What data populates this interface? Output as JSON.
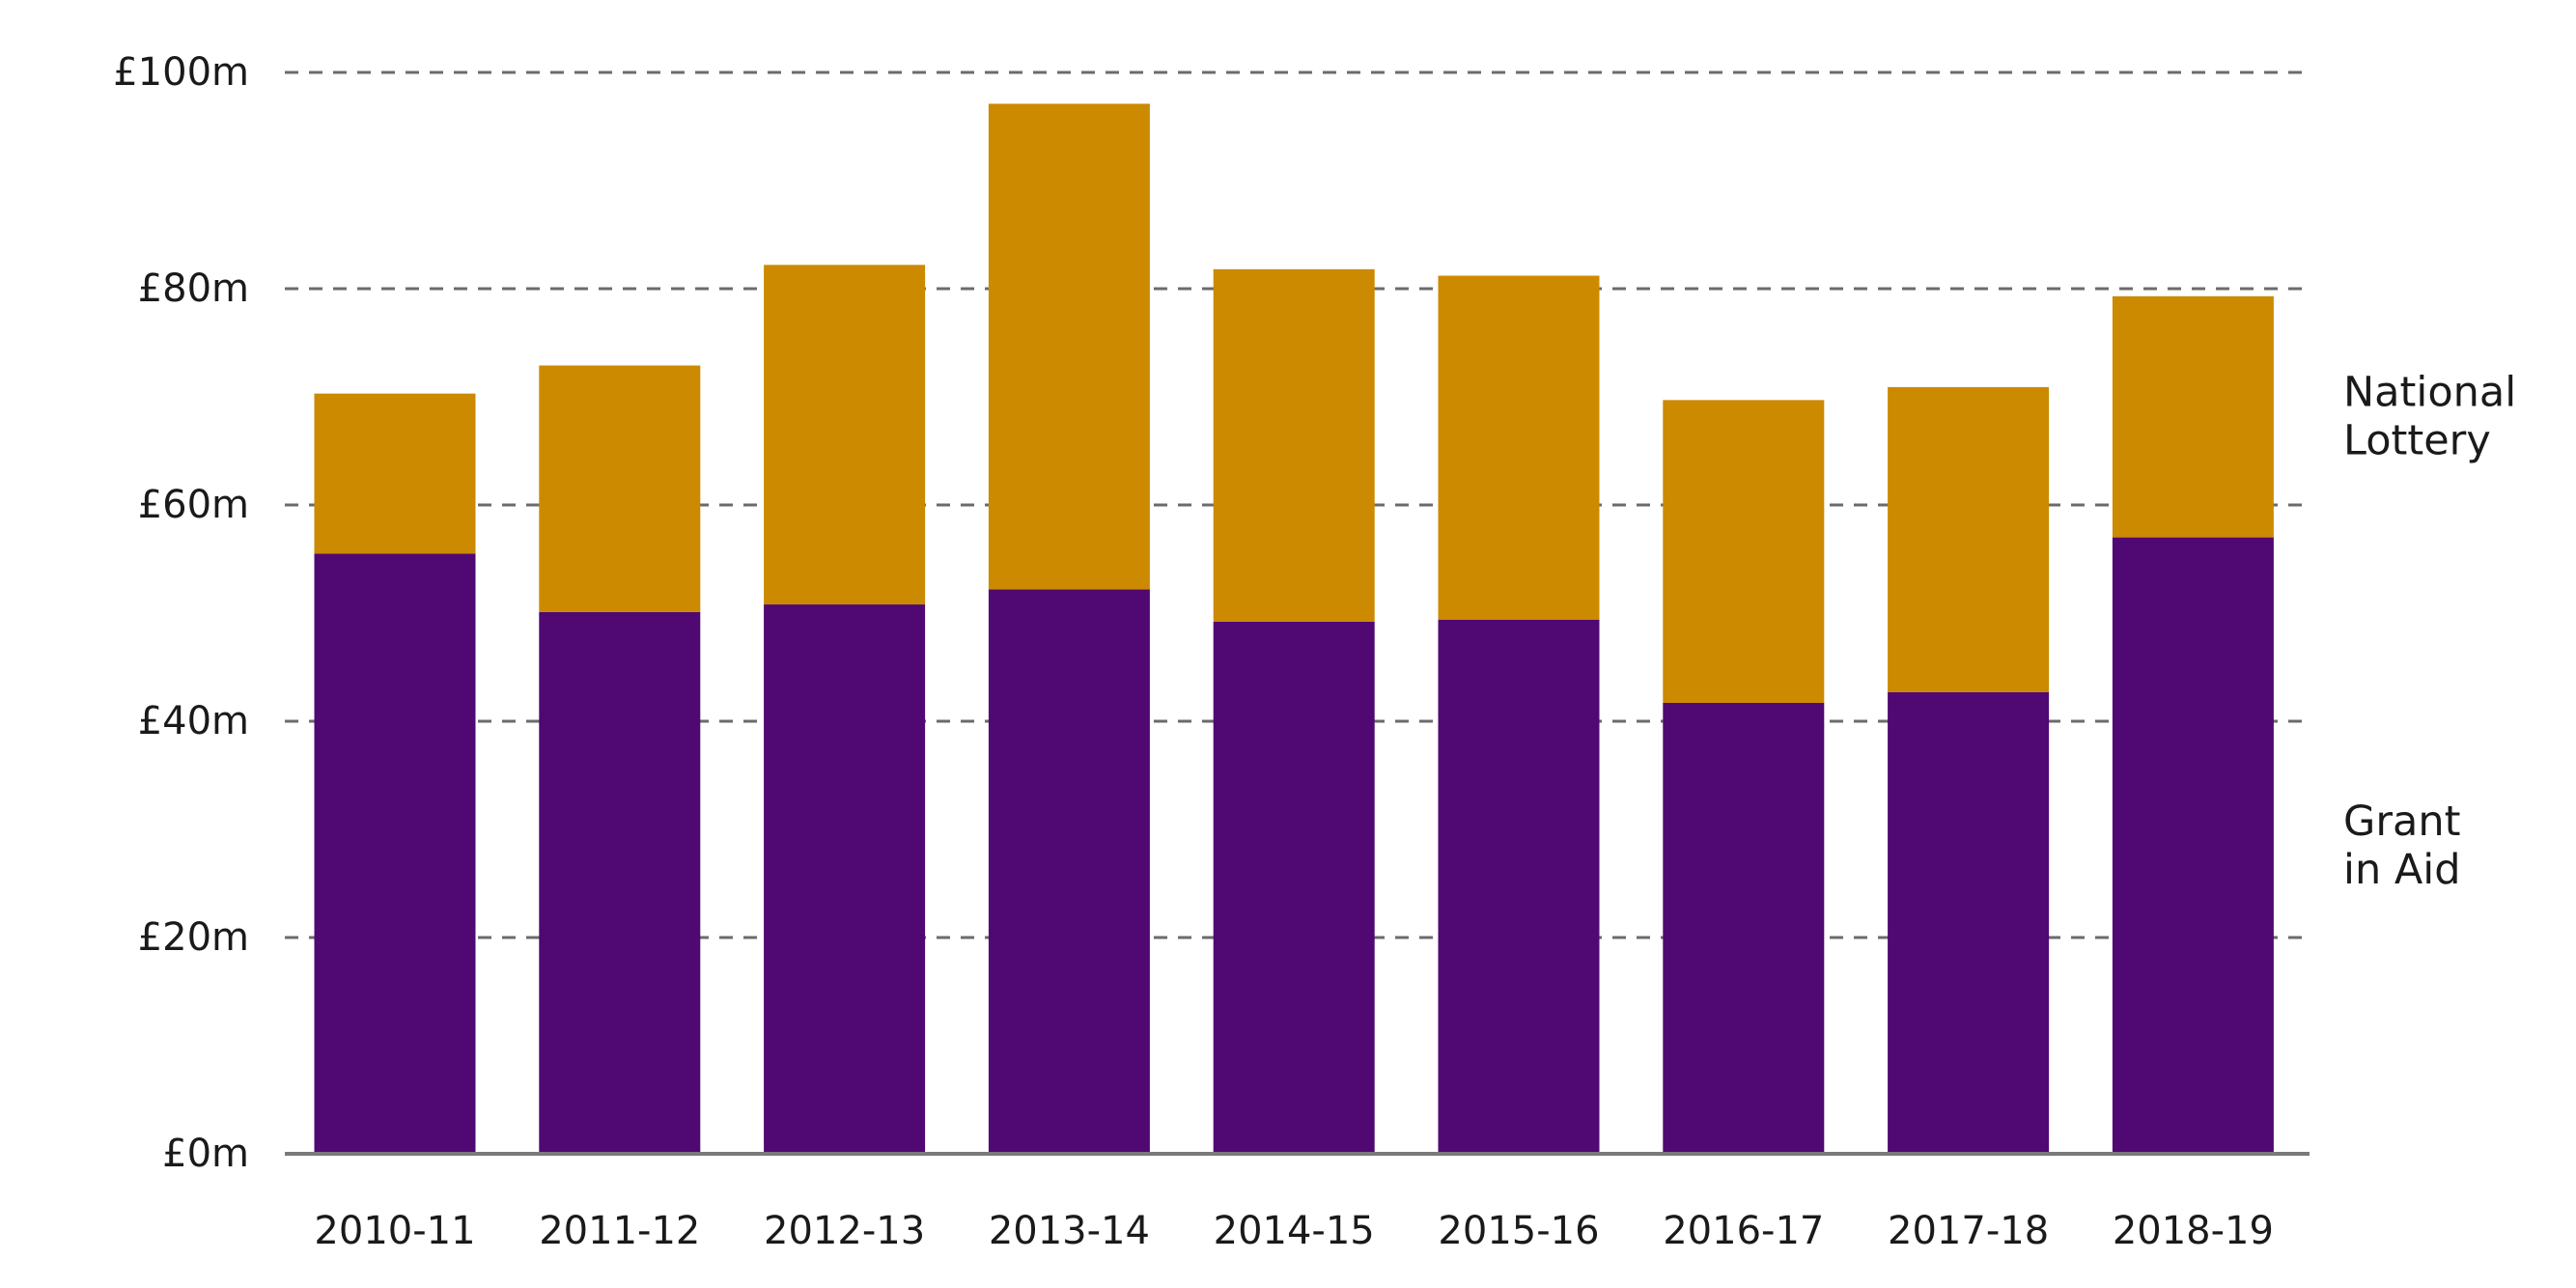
{
  "chart_data": {
    "type": "bar",
    "stacked": true,
    "categories": [
      "2010-11",
      "2011-12",
      "2012-13",
      "2013-14",
      "2014-15",
      "2015-16",
      "2016-17",
      "2017-18",
      "2018-19"
    ],
    "series": [
      {
        "name": "Grant in Aid",
        "legend_lines": [
          "Grant",
          "in Aid"
        ],
        "color": "#500872",
        "values": [
          55.5,
          50.1,
          50.8,
          52.2,
          49.2,
          49.4,
          41.7,
          42.7,
          57.0
        ]
      },
      {
        "name": "National Lottery",
        "legend_lines": [
          "National",
          "Lottery"
        ],
        "color": "#CB8A00",
        "values": [
          14.8,
          22.8,
          31.4,
          44.9,
          32.6,
          31.8,
          28.0,
          28.2,
          22.3
        ]
      }
    ],
    "ylim": [
      0,
      100
    ],
    "yticks": [
      0,
      20,
      40,
      60,
      80,
      100
    ],
    "ytick_labels": [
      "£0m",
      "£20m",
      "£40m",
      "£60m",
      "£80m",
      "£100m"
    ],
    "grid": true,
    "legend_placement": "right, beside each stack segment",
    "title": "",
    "xlabel": "",
    "ylabel": ""
  }
}
